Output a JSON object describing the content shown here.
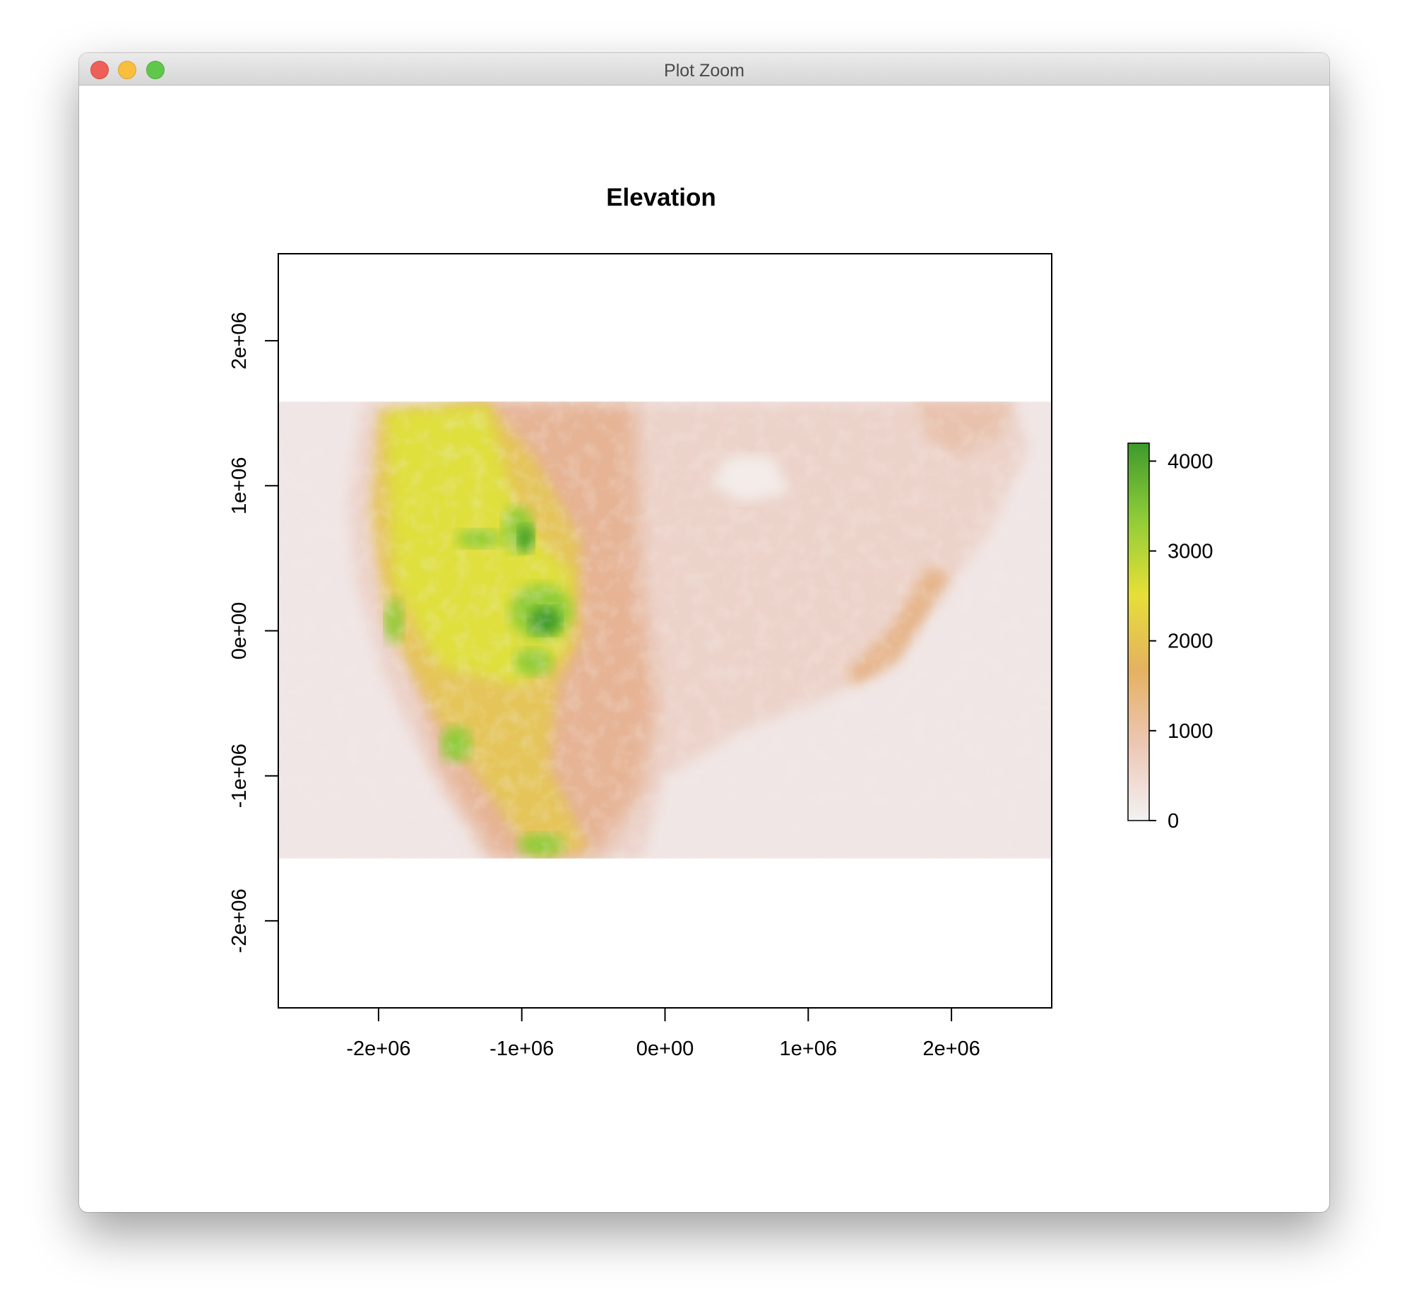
{
  "window": {
    "title": "Plot Zoom"
  },
  "chart_data": {
    "type": "heatmap",
    "title": "Elevation",
    "xlabel": "",
    "ylabel": "",
    "xlim": [
      -2700000,
      2700000
    ],
    "ylim": [
      -2600000,
      2600000
    ],
    "x_ticks": [
      -2000000,
      -1000000,
      0,
      1000000,
      2000000
    ],
    "x_tick_labels": [
      "-2e+06",
      "-1e+06",
      "0e+00",
      "1e+06",
      "2e+06"
    ],
    "y_ticks": [
      -2000000,
      -1000000,
      0,
      1000000,
      2000000
    ],
    "y_tick_labels": [
      "-2e+06",
      "-1e+06",
      "0e+00",
      "1e+06",
      "2e+06"
    ],
    "raster_extent": {
      "xmin": -2700000,
      "xmax": 2700000,
      "ymin": -1570000,
      "ymax": 1580000
    },
    "legend": {
      "position": "right",
      "range": [
        0,
        4200
      ],
      "ticks": [
        0,
        1000,
        2000,
        3000,
        4000
      ],
      "tick_labels": [
        "0",
        "1000",
        "2000",
        "3000",
        "4000"
      ],
      "colors": [
        "#f2f2f2",
        "#edc7b5",
        "#e5b161",
        "#e6df38",
        "#8fcc38",
        "#3e9a2c"
      ]
    },
    "grid": false
  }
}
